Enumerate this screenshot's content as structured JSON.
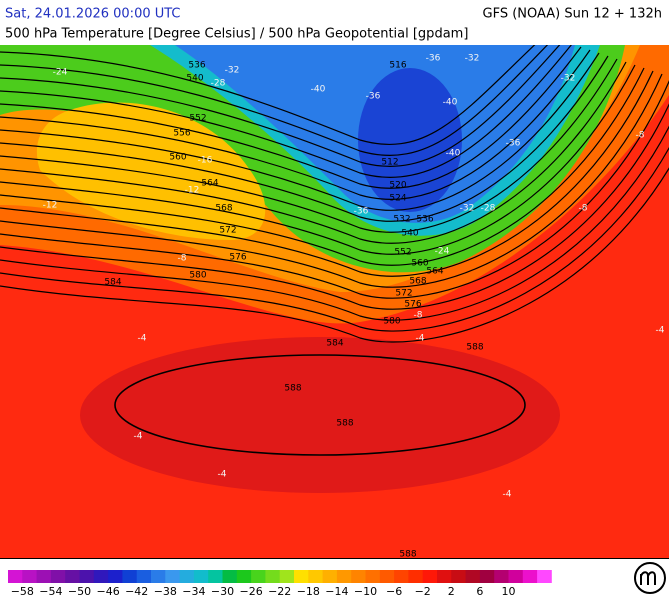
{
  "header": {
    "left": "Sat, 24.01.2026 00:00 UTC",
    "right": "GFS (NOAA) Sun 12 + 132h",
    "subtitle": "500 hPa Temperature [Degree Celsius] / 500 hPa Geopotential [gpdam]"
  },
  "contour_labels": [
    "536",
    "540",
    "552",
    "556",
    "560",
    "564",
    "568",
    "572",
    "576",
    "580",
    "584",
    "516",
    "512",
    "520",
    "524",
    "532",
    "536",
    "540",
    "552",
    "560",
    "564",
    "568",
    "572",
    "576",
    "580",
    "584",
    "588",
    "588",
    "588",
    "588"
  ],
  "temperature_labels": [
    "-32",
    "-28",
    "-24",
    "-36",
    "-32",
    "-40",
    "-36",
    "-32",
    "-40",
    "-40",
    "-36",
    "-36",
    "-32",
    "-28",
    "-12",
    "-16",
    "-12",
    "-8",
    "-8",
    "-8",
    "-4",
    "-4",
    "-4",
    "-4",
    "-4",
    "-4",
    "-24",
    "-8"
  ],
  "colorbar": {
    "colors": [
      "#d414d4",
      "#b812c4",
      "#9c10b4",
      "#8010a8",
      "#6610a4",
      "#4c12ac",
      "#3018bc",
      "#1c20cc",
      "#1040d4",
      "#1a5ee0",
      "#2a7ce8",
      "#3a98ee",
      "#24acde",
      "#12bccc",
      "#04c4a0",
      "#04bc44",
      "#1cc81c",
      "#48d41c",
      "#74dc1c",
      "#a0e41c",
      "#ffe000",
      "#ffc800",
      "#ffb000",
      "#ff9800",
      "#ff8400",
      "#ff7000",
      "#ff5a00",
      "#ff4400",
      "#ff2e00",
      "#ff1808",
      "#e01010",
      "#c80c14",
      "#b00824",
      "#a00040",
      "#b40070",
      "#d0009c",
      "#ec10cc",
      "#ff48ff"
    ],
    "ticks": [
      "−58",
      "−54",
      "−50",
      "−46",
      "−42",
      "−38",
      "−34",
      "−30",
      "−26",
      "−22",
      "−18",
      "−14",
      "−10",
      "−6",
      "−2",
      "2",
      "6",
      "10"
    ]
  }
}
